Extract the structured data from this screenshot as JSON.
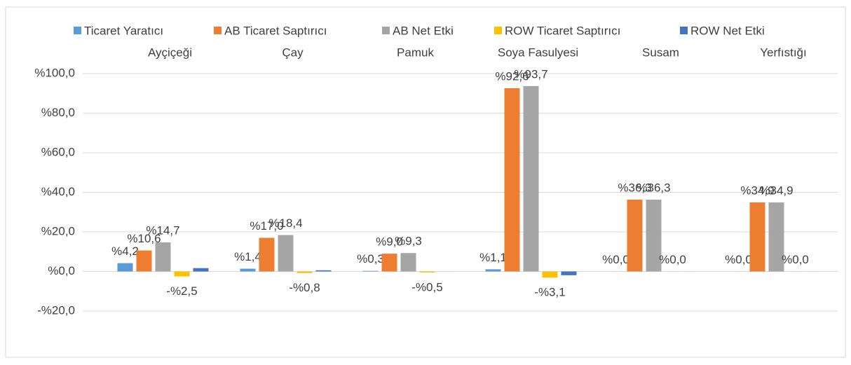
{
  "chart_data": {
    "type": "bar",
    "categories": [
      "Ayçiçeği",
      "Çay",
      "Pamuk",
      "Soya Fasulyesi",
      "Susam",
      "Yerfıstığı"
    ],
    "series": [
      {
        "name": "Ticaret Yaratıcı",
        "color": "#5b9bd5",
        "values": [
          4.2,
          1.4,
          0.3,
          1.1,
          0.0,
          0.0
        ],
        "value_labels": [
          "%4,2",
          "%1,4",
          "%0,3",
          "%1,1",
          "%0,0",
          "%0,0"
        ]
      },
      {
        "name": "AB Ticaret Saptırıcı",
        "color": "#ed7d31",
        "values": [
          10.6,
          17.0,
          9.0,
          92.6,
          36.3,
          34.9
        ],
        "value_labels": [
          "%10,6",
          "%17,0",
          "%9,0",
          "%92,6",
          "%36,3",
          "%34,9"
        ]
      },
      {
        "name": "AB Net Etki",
        "color": "#a5a5a5",
        "values": [
          14.7,
          18.4,
          9.3,
          93.7,
          36.3,
          34.9
        ],
        "value_labels": [
          "%14,7",
          "%18,4",
          "%9,3",
          "%93,7",
          "%36,3",
          "%34,9"
        ]
      },
      {
        "name": "ROW Ticaret Saptırıcı",
        "color": "#ffc000",
        "values": [
          -2.5,
          -0.8,
          -0.5,
          -3.1,
          0.0,
          0.0
        ],
        "value_labels": [
          "-%2,5",
          "-%0,8",
          "-%0,5",
          "-%3,1",
          "%0,0",
          "%0,0"
        ]
      },
      {
        "name": "ROW Net Etki",
        "color": "#4472c4",
        "values": [
          1.7,
          0.6,
          0.0,
          -1.9,
          0.0,
          0.0
        ]
      }
    ],
    "ylim": [
      -20,
      100
    ],
    "yticks": [
      {
        "value": -20,
        "label": "-%20,0"
      },
      {
        "value": 0,
        "label": "%0,0"
      },
      {
        "value": 20,
        "label": "%20,0"
      },
      {
        "value": 40,
        "label": "%40,0"
      },
      {
        "value": 60,
        "label": "%60,0"
      },
      {
        "value": 80,
        "label": "%80,0"
      },
      {
        "value": 100,
        "label": "%100,0"
      }
    ],
    "grid": true,
    "legend": "top"
  }
}
